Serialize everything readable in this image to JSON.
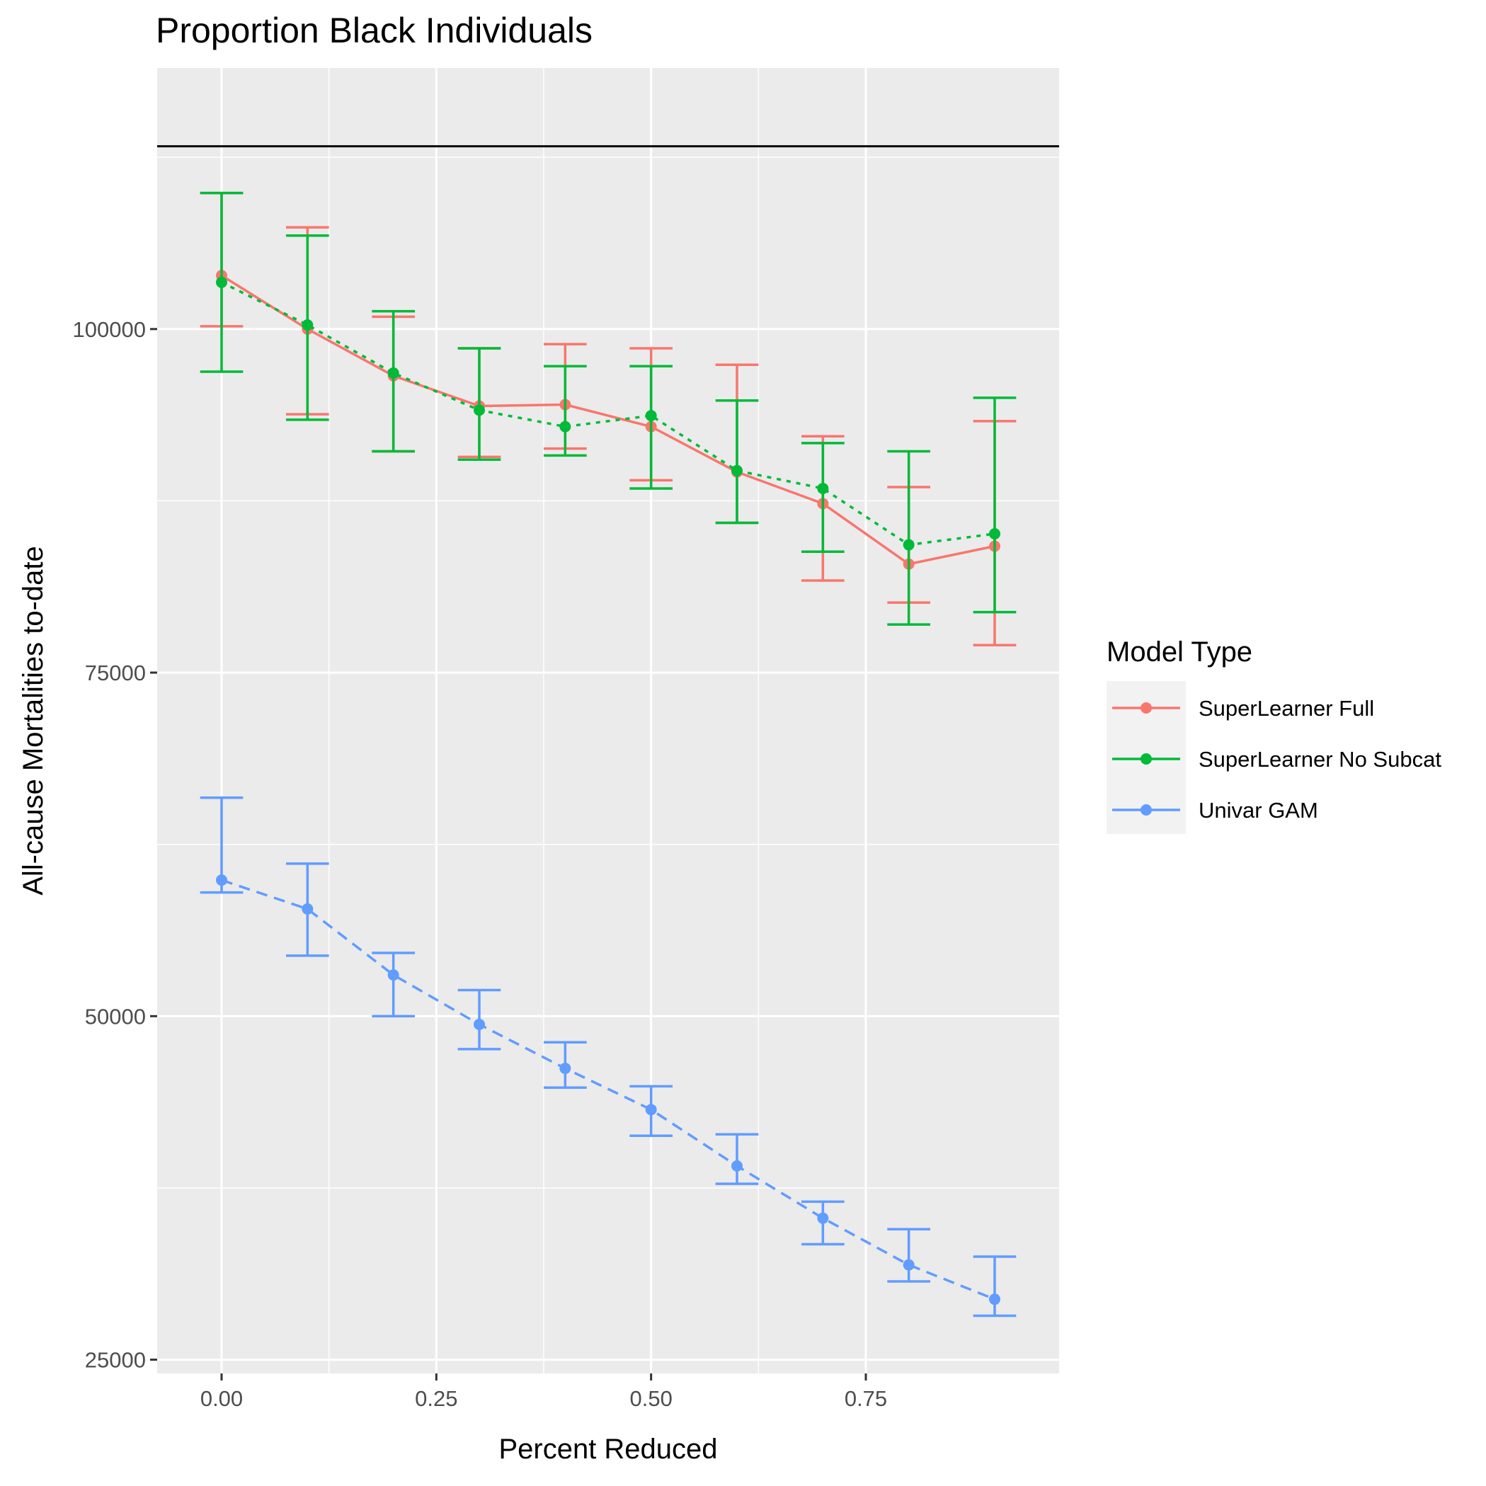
{
  "chart_data": {
    "type": "line",
    "title": "Proportion Black Individuals",
    "xlabel": "Percent Reduced",
    "ylabel": "All-cause Mortalities to-date",
    "x_ticks": [
      "0.00",
      "0.25",
      "0.50",
      "0.75"
    ],
    "y_ticks": [
      "25000",
      "50000",
      "75000",
      "100000"
    ],
    "x_tick_values": [
      0,
      0.25,
      0.5,
      0.75
    ],
    "y_tick_values": [
      25000,
      50000,
      75000,
      100000
    ],
    "xlim": [
      -0.075,
      0.975
    ],
    "ylim": [
      24000,
      119000
    ],
    "grid": true,
    "legend_position": "right",
    "legend_title": "Model Type",
    "x": [
      0,
      0.1,
      0.2,
      0.3,
      0.4,
      0.5,
      0.6,
      0.7,
      0.8,
      0.9
    ],
    "reference_line": 113300,
    "series": [
      {
        "name": "SuperLearner Full",
        "color": "#F8766D",
        "dash": "solid",
        "values": [
          103900,
          100000,
          96600,
          94400,
          94500,
          92900,
          89600,
          87300,
          82900,
          84200
        ],
        "lower": [
          100200,
          93800,
          91100,
          90700,
          91300,
          89000,
          85900,
          81700,
          80100,
          77000
        ],
        "upper": [
          109900,
          107400,
          100900,
          98600,
          98900,
          98600,
          97400,
          92200,
          88500,
          93300
        ]
      },
      {
        "name": "SuperLearner No Subcat",
        "color": "#00BA38",
        "dash": "dotted",
        "values": [
          103400,
          100300,
          96800,
          94100,
          92900,
          93700,
          89700,
          88400,
          84300,
          85100
        ],
        "lower": [
          96900,
          93400,
          91100,
          90500,
          90800,
          88400,
          85900,
          83800,
          78500,
          79400
        ],
        "upper": [
          109900,
          106800,
          101300,
          98600,
          97300,
          97300,
          94800,
          91700,
          91100,
          95000
        ]
      },
      {
        "name": "Univar GAM",
        "color": "#619CFF",
        "dash": "dashed",
        "values": [
          59900,
          57800,
          53000,
          49400,
          46200,
          43200,
          39100,
          35300,
          31900,
          29400
        ],
        "lower": [
          59000,
          54400,
          50000,
          47600,
          44800,
          41300,
          37800,
          33400,
          30700,
          28200
        ],
        "upper": [
          65900,
          61100,
          54600,
          51900,
          48100,
          44900,
          41400,
          36500,
          34500,
          32500
        ]
      }
    ]
  }
}
